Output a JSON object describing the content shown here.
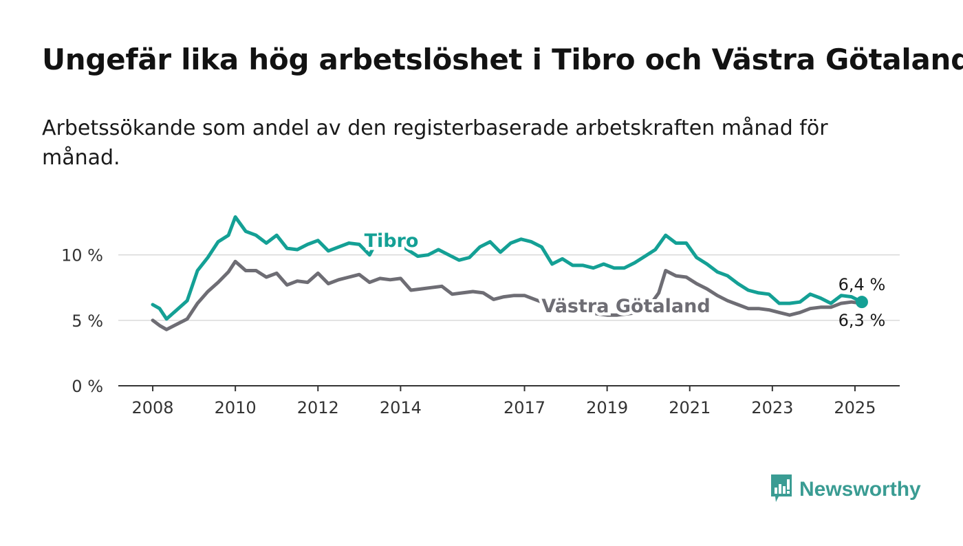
{
  "title": "Ungefär lika hög arbetslöshet i Tibro och Västra Götaland",
  "subtitle": "Arbetssökande som andel av den registerbaserade arbetskraften månad för månad.",
  "brand": {
    "name": "Newsworthy",
    "icon": "newsworthy-logo-icon",
    "color": "#3a9c93"
  },
  "chart_data": {
    "type": "line",
    "title": "Ungefär lika hög arbetslöshet i Tibro och Västra Götaland",
    "subtitle": "Arbetssökande som andel av den registerbaserade arbetskraften månad för månad.",
    "xlabel": "",
    "ylabel": "",
    "xlim": [
      "2007-03",
      "2026-02"
    ],
    "ylim": [
      0,
      14.5
    ],
    "grid": true,
    "x_ticks": [
      "2008",
      "2010",
      "2012",
      "2014",
      "2017",
      "2019",
      "2021",
      "2023",
      "2025"
    ],
    "y_ticks": [
      {
        "value": 0,
        "label": "0 %"
      },
      {
        "value": 5,
        "label": "5 %"
      },
      {
        "value": 10,
        "label": "10 %"
      }
    ],
    "series": [
      {
        "name": "Tibro",
        "color": "#14a095",
        "end_label": "6,4 %",
        "points": [
          [
            "2008-01",
            6.2
          ],
          [
            "2008-03",
            5.9
          ],
          [
            "2008-05",
            5.1
          ],
          [
            "2008-08",
            5.8
          ],
          [
            "2008-11",
            6.5
          ],
          [
            "2009-02",
            8.8
          ],
          [
            "2009-05",
            9.8
          ],
          [
            "2009-08",
            11.0
          ],
          [
            "2009-11",
            11.5
          ],
          [
            "2010-01",
            12.9
          ],
          [
            "2010-04",
            11.8
          ],
          [
            "2010-07",
            11.5
          ],
          [
            "2010-10",
            10.9
          ],
          [
            "2011-01",
            11.5
          ],
          [
            "2011-04",
            10.5
          ],
          [
            "2011-07",
            10.4
          ],
          [
            "2011-10",
            10.8
          ],
          [
            "2012-01",
            11.1
          ],
          [
            "2012-04",
            10.3
          ],
          [
            "2012-07",
            10.6
          ],
          [
            "2012-10",
            10.9
          ],
          [
            "2013-01",
            10.8
          ],
          [
            "2013-04",
            10.0
          ],
          [
            "2013-06",
            11.0
          ],
          [
            "2013-09",
            11.2
          ],
          [
            "2013-12",
            10.9
          ],
          [
            "2014-03",
            10.4
          ],
          [
            "2014-06",
            9.9
          ],
          [
            "2014-09",
            10.0
          ],
          [
            "2014-12",
            10.4
          ],
          [
            "2015-03",
            10.0
          ],
          [
            "2015-06",
            9.6
          ],
          [
            "2015-09",
            9.8
          ],
          [
            "2015-12",
            10.6
          ],
          [
            "2016-03",
            11.0
          ],
          [
            "2016-06",
            10.2
          ],
          [
            "2016-09",
            10.9
          ],
          [
            "2016-12",
            11.2
          ],
          [
            "2017-03",
            11.0
          ],
          [
            "2017-06",
            10.6
          ],
          [
            "2017-09",
            9.3
          ],
          [
            "2017-12",
            9.7
          ],
          [
            "2018-03",
            9.2
          ],
          [
            "2018-06",
            9.2
          ],
          [
            "2018-09",
            9.0
          ],
          [
            "2018-12",
            9.3
          ],
          [
            "2019-03",
            9.0
          ],
          [
            "2019-06",
            9.0
          ],
          [
            "2019-09",
            9.4
          ],
          [
            "2019-12",
            9.9
          ],
          [
            "2020-03",
            10.4
          ],
          [
            "2020-06",
            11.5
          ],
          [
            "2020-09",
            10.9
          ],
          [
            "2020-12",
            10.9
          ],
          [
            "2021-03",
            9.8
          ],
          [
            "2021-06",
            9.3
          ],
          [
            "2021-09",
            8.7
          ],
          [
            "2021-12",
            8.4
          ],
          [
            "2022-03",
            7.8
          ],
          [
            "2022-06",
            7.3
          ],
          [
            "2022-09",
            7.1
          ],
          [
            "2022-12",
            7.0
          ],
          [
            "2023-03",
            6.3
          ],
          [
            "2023-06",
            6.3
          ],
          [
            "2023-09",
            6.4
          ],
          [
            "2023-12",
            7.0
          ],
          [
            "2024-03",
            6.7
          ],
          [
            "2024-06",
            6.3
          ],
          [
            "2024-09",
            6.9
          ],
          [
            "2024-12",
            6.8
          ],
          [
            "2025-03",
            6.4
          ]
        ]
      },
      {
        "name": "Västra Götaland",
        "color": "#6e6d74",
        "end_label": "6,3 %",
        "points": [
          [
            "2008-01",
            5.0
          ],
          [
            "2008-03",
            4.6
          ],
          [
            "2008-05",
            4.3
          ],
          [
            "2008-08",
            4.7
          ],
          [
            "2008-11",
            5.1
          ],
          [
            "2009-02",
            6.3
          ],
          [
            "2009-05",
            7.2
          ],
          [
            "2009-08",
            7.9
          ],
          [
            "2009-11",
            8.7
          ],
          [
            "2010-01",
            9.5
          ],
          [
            "2010-04",
            8.8
          ],
          [
            "2010-07",
            8.8
          ],
          [
            "2010-10",
            8.3
          ],
          [
            "2011-01",
            8.6
          ],
          [
            "2011-04",
            7.7
          ],
          [
            "2011-07",
            8.0
          ],
          [
            "2011-10",
            7.9
          ],
          [
            "2012-01",
            8.6
          ],
          [
            "2012-04",
            7.8
          ],
          [
            "2012-07",
            8.1
          ],
          [
            "2012-10",
            8.3
          ],
          [
            "2013-01",
            8.5
          ],
          [
            "2013-04",
            7.9
          ],
          [
            "2013-07",
            8.2
          ],
          [
            "2013-10",
            8.1
          ],
          [
            "2014-01",
            8.2
          ],
          [
            "2014-04",
            7.3
          ],
          [
            "2014-07",
            7.4
          ],
          [
            "2014-10",
            7.5
          ],
          [
            "2015-01",
            7.6
          ],
          [
            "2015-04",
            7.0
          ],
          [
            "2015-07",
            7.1
          ],
          [
            "2015-10",
            7.2
          ],
          [
            "2016-01",
            7.1
          ],
          [
            "2016-04",
            6.6
          ],
          [
            "2016-07",
            6.8
          ],
          [
            "2016-10",
            6.9
          ],
          [
            "2017-01",
            6.9
          ],
          [
            "2017-04",
            6.6
          ],
          [
            "2017-07",
            6.3
          ],
          [
            "2017-10",
            6.0
          ],
          [
            "2018-01",
            5.9
          ],
          [
            "2018-04",
            5.7
          ],
          [
            "2018-07",
            5.6
          ],
          [
            "2018-10",
            5.5
          ],
          [
            "2019-01",
            5.4
          ],
          [
            "2019-04",
            5.4
          ],
          [
            "2019-07",
            5.5
          ],
          [
            "2019-10",
            5.6
          ],
          [
            "2020-01",
            6.0
          ],
          [
            "2020-04",
            7.1
          ],
          [
            "2020-06",
            8.8
          ],
          [
            "2020-09",
            8.4
          ],
          [
            "2020-12",
            8.3
          ],
          [
            "2021-03",
            7.8
          ],
          [
            "2021-06",
            7.4
          ],
          [
            "2021-09",
            6.9
          ],
          [
            "2021-12",
            6.5
          ],
          [
            "2022-03",
            6.2
          ],
          [
            "2022-06",
            5.9
          ],
          [
            "2022-09",
            5.9
          ],
          [
            "2022-12",
            5.8
          ],
          [
            "2023-03",
            5.6
          ],
          [
            "2023-06",
            5.4
          ],
          [
            "2023-09",
            5.6
          ],
          [
            "2023-12",
            5.9
          ],
          [
            "2024-03",
            6.0
          ],
          [
            "2024-06",
            6.0
          ],
          [
            "2024-09",
            6.3
          ],
          [
            "2024-12",
            6.4
          ],
          [
            "2025-03",
            6.3
          ]
        ]
      }
    ]
  }
}
